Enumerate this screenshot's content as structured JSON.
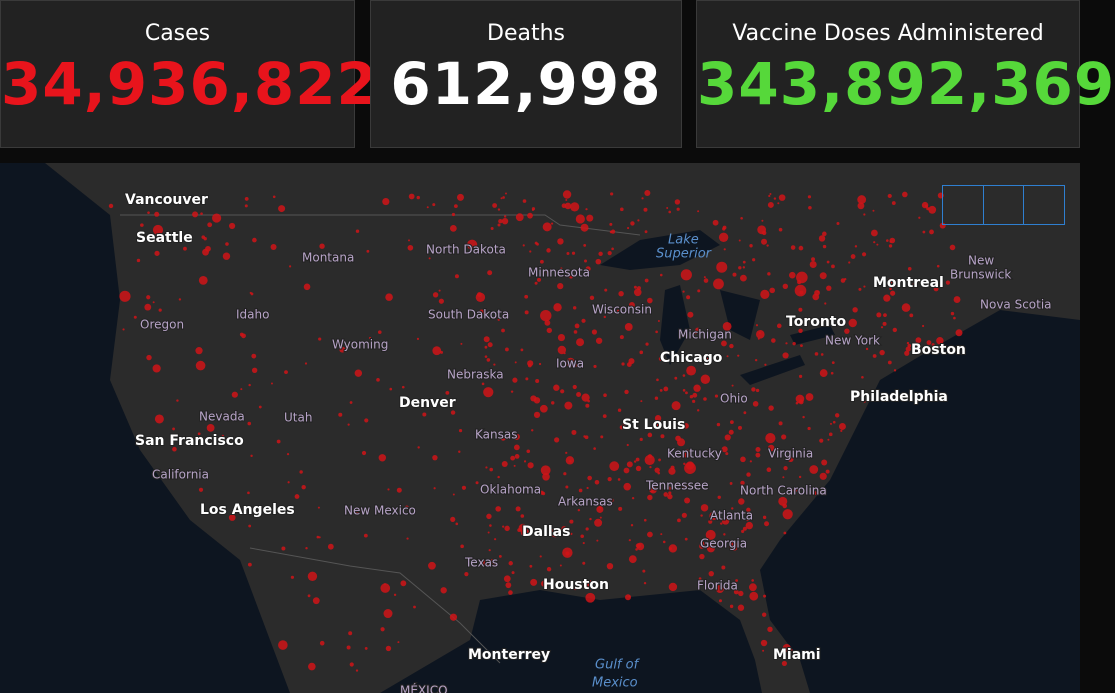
{
  "header": {
    "cards": [
      {
        "label": "Cases",
        "value": "34,936,822",
        "color": "#e8141c"
      },
      {
        "label": "Deaths",
        "value": "612,998",
        "color": "#ffffff"
      },
      {
        "label": "Vaccine Doses Administered",
        "value": "343,892,369",
        "color": "#56d83a"
      }
    ]
  },
  "map": {
    "cities": [
      "Vancouver",
      "Seattle",
      "Montreal",
      "Toronto",
      "Boston",
      "Chicago",
      "Philadelphia",
      "Denver",
      "San Francisco",
      "St Louis",
      "Los Angeles",
      "Dallas",
      "Houston",
      "Monterrey",
      "Miami"
    ],
    "regions": [
      "Montana",
      "North Dakota",
      "Minnesota",
      "New",
      "Brunswick",
      "Nova Scotia",
      "Oregon",
      "Idaho",
      "South Dakota",
      "Wisconsin",
      "Michigan",
      "New York",
      "Wyoming",
      "Iowa",
      "Nebraska",
      "Nevada",
      "Utah",
      "Ohio",
      "Kansas",
      "Kentucky",
      "Virginia",
      "California",
      "Tennessee",
      "Oklahoma",
      "North Carolina",
      "Arkansas",
      "New Mexico",
      "Atlanta",
      "Georgia",
      "Texas",
      "Florida",
      "MÉXICO"
    ],
    "water": [
      "Lake",
      "Superior",
      "Gulf of",
      "Mexico"
    ]
  }
}
